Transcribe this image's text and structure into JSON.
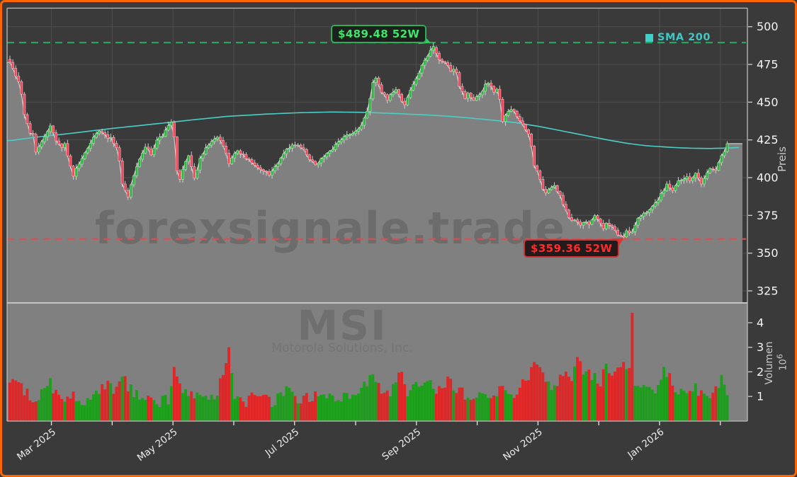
{
  "watermarks": {
    "site": "forexsignale.trade",
    "symbol": "MSI",
    "company": "Motorola Solutions, Inc."
  },
  "annotations": {
    "high_label": "$489.48 52W",
    "low_label": "$359.36 52W",
    "sma_label": "SMA 200"
  },
  "axes": {
    "price_label": "Preis",
    "volume_label": "Volumen",
    "volume_unit_base": "10",
    "volume_unit_exp": "6"
  },
  "colors": {
    "frame_border": "#fd6500",
    "background": "#3a3a3a",
    "panel_gray": "#808080",
    "grid": "#4e4e4e",
    "spine": "#bdbdbd",
    "candle_up": "#2eb440",
    "candle_up_edge": "#9beba4",
    "candle_down": "#f0475a",
    "candle_down_edge": "#ffb3bd",
    "wick": "#dadada",
    "volume_up": "#1ca01c",
    "volume_down": "#e02626",
    "sma": "#49cfc7",
    "high_line": "#2aa85c",
    "low_line": "#dd4f4f",
    "watermark": "#6c6c6c",
    "tick_text": "#f4f4f4",
    "xlabel_text": "#ededed"
  },
  "chart_data": {
    "type": "candlestick+volume",
    "symbol": "MSI",
    "title": "",
    "days": 250,
    "seed": 9,
    "high_52w": 489.48,
    "low_52w": 359.36,
    "price_axis": {
      "label": "Preis",
      "ticks": [
        500,
        475,
        450,
        425,
        400,
        375,
        350,
        325
      ],
      "range": [
        317,
        512
      ]
    },
    "volume_axis": {
      "label": "Volumen",
      "unit": "10^6",
      "ticks": [
        4,
        3,
        2,
        1
      ],
      "range": [
        0,
        4.8
      ]
    },
    "x_ticks": [
      {
        "day": 14.4,
        "label": "Mar 2025"
      },
      {
        "day": 35.5,
        "label": ""
      },
      {
        "day": 56.6,
        "label": "May 2025"
      },
      {
        "day": 77.7,
        "label": ""
      },
      {
        "day": 98.8,
        "label": "Jul 2025"
      },
      {
        "day": 120.0,
        "label": ""
      },
      {
        "day": 141.1,
        "label": "Sep 2025"
      },
      {
        "day": 162.2,
        "label": ""
      },
      {
        "day": 183.3,
        "label": "Nov 2025"
      },
      {
        "day": 204.4,
        "label": ""
      },
      {
        "day": 225.5,
        "label": "Jan 2026"
      },
      {
        "day": 246.6,
        "label": ""
      }
    ],
    "hlines": [
      {
        "value": 489.48,
        "label": "$489.48 52W",
        "style": "dashed",
        "color": "#2aa85c"
      },
      {
        "value": 359.36,
        "label": "$359.36 52W",
        "style": "dashed",
        "color": "#dd4f4f"
      }
    ],
    "close_anchors": [
      [
        0,
        477
      ],
      [
        1,
        472
      ],
      [
        3,
        464
      ],
      [
        4,
        455
      ],
      [
        5,
        441
      ],
      [
        7,
        430
      ],
      [
        8,
        428
      ],
      [
        9,
        417
      ],
      [
        12,
        427
      ],
      [
        14,
        434
      ],
      [
        16,
        424
      ],
      [
        18,
        419
      ],
      [
        19,
        422
      ],
      [
        20,
        414
      ],
      [
        22,
        401
      ],
      [
        23,
        406
      ],
      [
        27,
        420
      ],
      [
        29,
        427
      ],
      [
        31,
        430
      ],
      [
        35,
        426
      ],
      [
        37,
        420
      ],
      [
        38,
        412
      ],
      [
        39,
        396
      ],
      [
        41,
        388
      ],
      [
        42,
        396
      ],
      [
        45,
        412
      ],
      [
        47,
        420
      ],
      [
        49,
        416
      ],
      [
        51,
        424
      ],
      [
        53,
        428
      ],
      [
        55,
        434
      ],
      [
        56,
        437
      ],
      [
        57,
        426
      ],
      [
        58,
        404
      ],
      [
        59,
        399
      ],
      [
        61,
        411
      ],
      [
        62,
        414
      ],
      [
        64,
        400
      ],
      [
        66,
        412
      ],
      [
        68,
        420
      ],
      [
        72,
        427
      ],
      [
        74,
        421
      ],
      [
        76,
        410
      ],
      [
        77,
        414
      ],
      [
        79,
        418
      ],
      [
        83,
        411
      ],
      [
        87,
        406
      ],
      [
        90,
        402
      ],
      [
        92,
        407
      ],
      [
        94,
        413
      ],
      [
        96,
        418
      ],
      [
        98,
        421
      ],
      [
        100,
        422
      ],
      [
        102,
        418
      ],
      [
        104,
        412
      ],
      [
        106,
        408
      ],
      [
        110,
        416
      ],
      [
        112,
        419
      ],
      [
        116,
        427
      ],
      [
        120,
        431
      ],
      [
        122,
        435
      ],
      [
        124,
        444
      ],
      [
        126,
        462
      ],
      [
        127,
        465
      ],
      [
        129,
        457
      ],
      [
        131,
        452
      ],
      [
        134,
        459
      ],
      [
        136,
        450
      ],
      [
        137,
        449
      ],
      [
        139,
        457
      ],
      [
        141,
        466
      ],
      [
        143,
        474
      ],
      [
        145,
        480
      ],
      [
        147,
        487
      ],
      [
        149,
        479
      ],
      [
        150,
        476
      ],
      [
        151,
        477
      ],
      [
        153,
        470
      ],
      [
        154,
        472
      ],
      [
        155,
        469
      ],
      [
        156,
        461
      ],
      [
        158,
        453
      ],
      [
        159,
        455
      ],
      [
        161,
        452
      ],
      [
        163,
        455
      ],
      [
        165,
        461
      ],
      [
        166,
        463
      ],
      [
        168,
        456
      ],
      [
        169,
        458
      ],
      [
        170,
        452
      ],
      [
        171,
        437
      ],
      [
        173,
        444
      ],
      [
        174,
        446
      ],
      [
        176,
        441
      ],
      [
        178,
        436
      ],
      [
        180,
        428
      ],
      [
        181,
        420
      ],
      [
        182,
        407
      ],
      [
        183,
        405
      ],
      [
        185,
        393
      ],
      [
        186,
        390
      ],
      [
        187,
        393
      ],
      [
        189,
        394
      ],
      [
        191,
        388
      ],
      [
        193,
        378
      ],
      [
        195,
        371
      ],
      [
        196,
        373
      ],
      [
        198,
        368
      ],
      [
        199,
        371
      ],
      [
        201,
        369
      ],
      [
        203,
        374
      ],
      [
        205,
        370
      ],
      [
        206,
        367
      ],
      [
        207,
        369
      ],
      [
        209,
        368
      ],
      [
        211,
        363
      ],
      [
        213,
        360
      ],
      [
        214,
        364
      ],
      [
        216,
        364
      ],
      [
        218,
        373
      ],
      [
        220,
        377
      ],
      [
        221,
        376
      ],
      [
        223,
        381
      ],
      [
        225,
        386
      ],
      [
        227,
        392
      ],
      [
        228,
        395
      ],
      [
        230,
        391
      ],
      [
        232,
        398
      ],
      [
        233,
        399
      ],
      [
        235,
        400
      ],
      [
        236,
        398
      ],
      [
        238,
        403
      ],
      [
        239,
        399
      ],
      [
        240,
        396
      ],
      [
        242,
        404
      ],
      [
        244,
        406
      ],
      [
        245,
        405
      ],
      [
        246,
        410
      ],
      [
        248,
        418
      ],
      [
        249,
        422
      ]
    ],
    "sma200_anchors": [
      [
        0,
        424.5
      ],
      [
        10,
        427
      ],
      [
        22,
        429.5
      ],
      [
        35,
        432.5
      ],
      [
        50,
        435.5
      ],
      [
        62,
        438
      ],
      [
        75,
        440.5
      ],
      [
        88,
        442
      ],
      [
        100,
        443
      ],
      [
        112,
        443.5
      ],
      [
        124,
        443.2
      ],
      [
        136,
        442.3
      ],
      [
        148,
        441.2
      ],
      [
        158,
        439.8
      ],
      [
        168,
        438
      ],
      [
        176,
        436.3
      ],
      [
        184,
        433.8
      ],
      [
        192,
        430.8
      ],
      [
        200,
        427.8
      ],
      [
        208,
        424.8
      ],
      [
        214,
        422.8
      ],
      [
        220,
        421.3
      ],
      [
        228,
        420.2
      ],
      [
        236,
        419.5
      ],
      [
        243,
        419.3
      ],
      [
        250,
        419.7
      ],
      [
        254,
        420.0
      ]
    ],
    "volume_anchors": [
      [
        0,
        1.4
      ],
      [
        2,
        1.6
      ],
      [
        5,
        1.2
      ],
      [
        9,
        0.9
      ],
      [
        14,
        1.5
      ],
      [
        18,
        0.8
      ],
      [
        22,
        1.1
      ],
      [
        28,
        0.7
      ],
      [
        33,
        1.5
      ],
      [
        37,
        1.2
      ],
      [
        39,
        1.8
      ],
      [
        43,
        1.1
      ],
      [
        48,
        0.9
      ],
      [
        52,
        0.8
      ],
      [
        55,
        0.9
      ],
      [
        57,
        2.2
      ],
      [
        59,
        1.4
      ],
      [
        63,
        1.0
      ],
      [
        68,
        1.1
      ],
      [
        72,
        1.0
      ],
      [
        76,
        3.0
      ],
      [
        78,
        1.0
      ],
      [
        82,
        0.8
      ],
      [
        87,
        1.1
      ],
      [
        91,
        0.8
      ],
      [
        96,
        1.2
      ],
      [
        100,
        0.8
      ],
      [
        105,
        1.0
      ],
      [
        109,
        1.2
      ],
      [
        113,
        0.9
      ],
      [
        117,
        1.0
      ],
      [
        121,
        1.3
      ],
      [
        124,
        1.6
      ],
      [
        126,
        1.9
      ],
      [
        129,
        1.3
      ],
      [
        132,
        1.1
      ],
      [
        136,
        2.0
      ],
      [
        138,
        1.2
      ],
      [
        140,
        1.6
      ],
      [
        143,
        1.3
      ],
      [
        146,
        1.5
      ],
      [
        149,
        1.2
      ],
      [
        152,
        1.8
      ],
      [
        155,
        1.3
      ],
      [
        158,
        1.1
      ],
      [
        161,
        0.9
      ],
      [
        165,
        1.2
      ],
      [
        168,
        1.0
      ],
      [
        171,
        1.6
      ],
      [
        174,
        1.1
      ],
      [
        177,
        1.3
      ],
      [
        180,
        1.9
      ],
      [
        183,
        2.3
      ],
      [
        186,
        1.6
      ],
      [
        189,
        1.3
      ],
      [
        191,
        1.7
      ],
      [
        193,
        2.1
      ],
      [
        195,
        1.6
      ],
      [
        197,
        2.6
      ],
      [
        199,
        2.0
      ],
      [
        202,
        1.8
      ],
      [
        205,
        1.6
      ],
      [
        207,
        2.2
      ],
      [
        210,
        1.9
      ],
      [
        213,
        2.4
      ],
      [
        215,
        2.1
      ],
      [
        217,
        1.3
      ],
      [
        220,
        1.3
      ],
      [
        223,
        1.1
      ],
      [
        225,
        1.5
      ],
      [
        227,
        2.2
      ],
      [
        229,
        1.8
      ],
      [
        231,
        1.0
      ],
      [
        234,
        1.3
      ],
      [
        237,
        1.4
      ],
      [
        240,
        1.2
      ],
      [
        243,
        1.1
      ],
      [
        246,
        1.2
      ],
      [
        247,
        1.9
      ],
      [
        249,
        1.1
      ]
    ],
    "volume_spikes": [
      [
        39,
        1.8,
        "green"
      ],
      [
        57,
        2.2,
        "red"
      ],
      [
        76,
        3.0,
        "red"
      ],
      [
        126,
        1.9,
        "green"
      ],
      [
        136,
        2.0,
        "red"
      ],
      [
        183,
        2.3,
        "red"
      ],
      [
        197,
        2.6,
        "red"
      ],
      [
        213,
        2.4,
        "red"
      ],
      [
        216,
        4.4,
        "red"
      ],
      [
        227,
        2.2,
        "green"
      ]
    ]
  }
}
